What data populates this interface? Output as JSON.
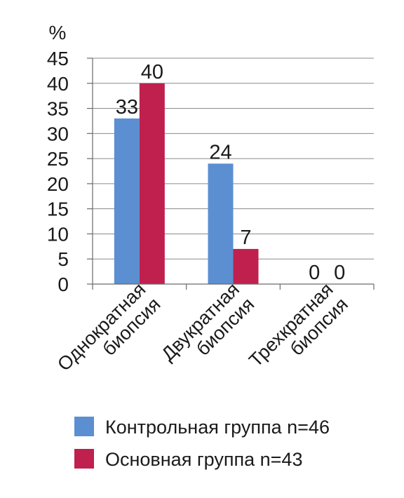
{
  "chart_data": {
    "type": "bar",
    "ylabel": "%",
    "ylim": [
      0,
      45
    ],
    "yticks": [
      0,
      5,
      10,
      15,
      20,
      25,
      30,
      35,
      40,
      45
    ],
    "grid": true,
    "legend_position": "bottom",
    "categories": [
      [
        "Однократная",
        "биопсия"
      ],
      [
        "Двукратная",
        "биопсия"
      ],
      [
        "Трехкратная",
        "биопсия"
      ]
    ],
    "series": [
      {
        "name": "Контрольная группа n=46",
        "color": "#5b8fd1",
        "values": [
          33,
          24,
          0
        ]
      },
      {
        "name": "Основная группа n=43",
        "color": "#c0204e",
        "values": [
          40,
          7,
          0
        ]
      }
    ]
  }
}
